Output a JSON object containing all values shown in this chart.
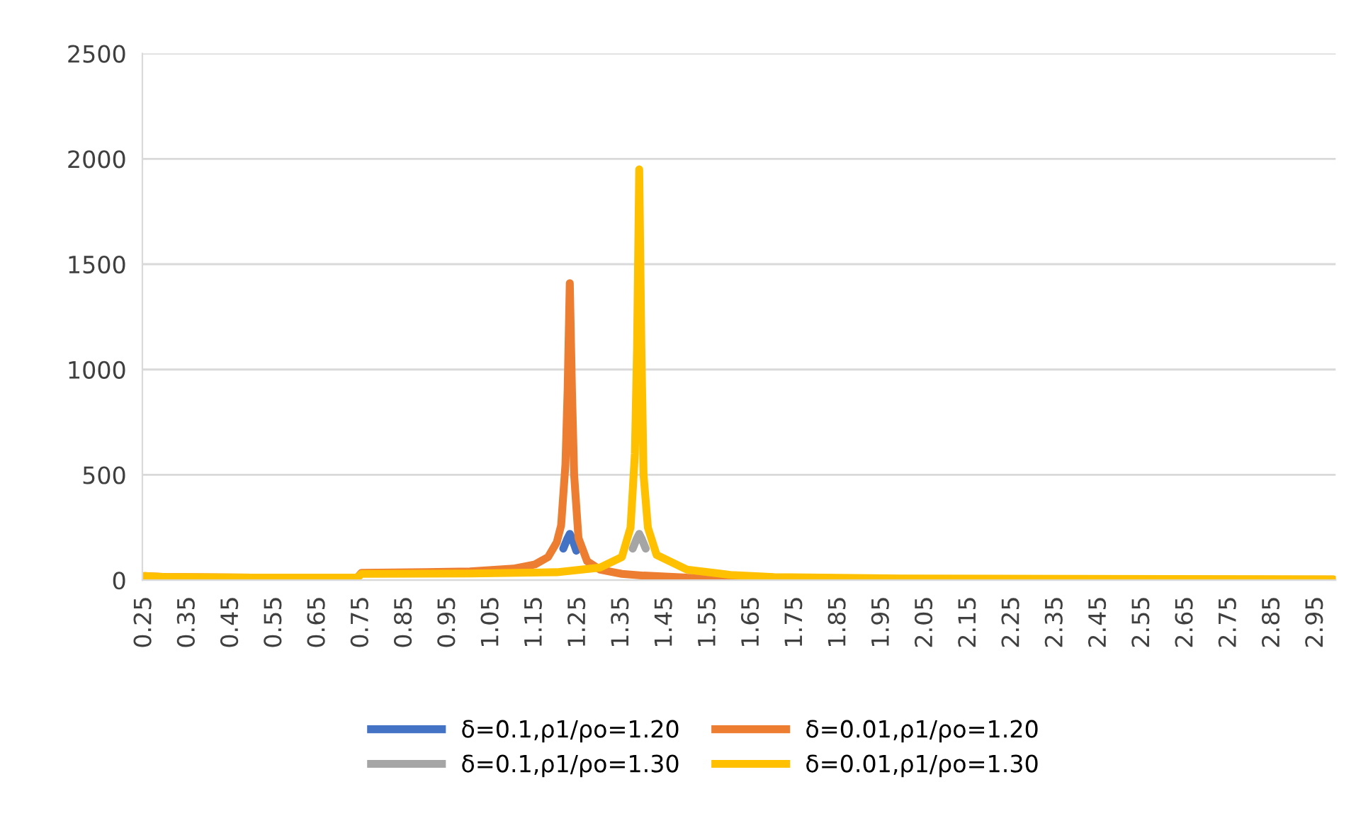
{
  "chart_data": {
    "type": "line",
    "xlim": [
      0.245,
      2.995
    ],
    "ylim": [
      0,
      2500
    ],
    "xticks": [
      0.25,
      0.35,
      0.45,
      0.55,
      0.65,
      0.75,
      0.85,
      0.95,
      1.05,
      1.15,
      1.25,
      1.35,
      1.45,
      1.55,
      1.65,
      1.75,
      1.85,
      1.95,
      2.05,
      2.15,
      2.25,
      2.35,
      2.45,
      2.55,
      2.65,
      2.75,
      2.85,
      2.95
    ],
    "yticks": [
      0,
      500,
      1000,
      1500,
      2000,
      2500
    ],
    "grid": "y",
    "legend": "bottom",
    "marker": "none",
    "line_style": "solid",
    "series": [
      {
        "name": "δ=0.1,ρ1/ρo=1.20",
        "color": "#4472c4",
        "x": [
          1.215,
          1.22,
          1.225,
          1.23,
          1.235,
          1.24,
          1.245
        ],
        "values": [
          150,
          175,
          200,
          220,
          200,
          170,
          140
        ]
      },
      {
        "name": "δ=0.01,ρ1/ρo=1.20",
        "color": "#ed7d31",
        "x": [
          0.25,
          0.3,
          0.5,
          0.74,
          0.75,
          0.9,
          1.0,
          1.1,
          1.15,
          1.18,
          1.2,
          1.21,
          1.22,
          1.225,
          1.23,
          1.235,
          1.24,
          1.25,
          1.27,
          1.3,
          1.35,
          1.4,
          1.5,
          1.7,
          2.0,
          2.99
        ],
        "values": [
          20,
          15,
          12,
          12,
          35,
          38,
          42,
          55,
          75,
          110,
          180,
          260,
          550,
          900,
          1410,
          900,
          500,
          200,
          90,
          50,
          30,
          22,
          12,
          6,
          4,
          3
        ]
      },
      {
        "name": "δ=0.1,ρ1/ρo=1.30",
        "color": "#a5a5a5",
        "x": [
          1.375,
          1.38,
          1.385,
          1.39,
          1.395,
          1.4,
          1.405
        ],
        "values": [
          150,
          175,
          200,
          220,
          200,
          175,
          150
        ]
      },
      {
        "name": "δ=0.01,ρ1/ρo=1.30",
        "color": "#ffc000",
        "x": [
          0.25,
          0.3,
          0.5,
          0.74,
          0.75,
          1.0,
          1.2,
          1.3,
          1.35,
          1.37,
          1.38,
          1.385,
          1.39,
          1.395,
          1.4,
          1.41,
          1.43,
          1.5,
          1.6,
          1.7,
          2.0,
          2.99
        ],
        "values": [
          20,
          15,
          12,
          12,
          30,
          32,
          38,
          60,
          110,
          250,
          600,
          1100,
          1950,
          1100,
          500,
          250,
          120,
          50,
          25,
          15,
          8,
          4
        ]
      }
    ]
  }
}
